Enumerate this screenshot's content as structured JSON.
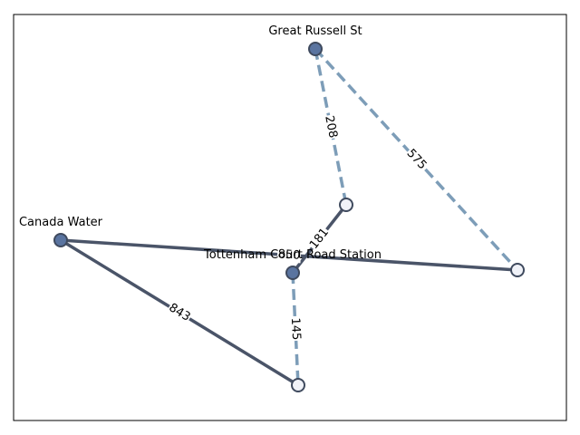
{
  "colors": {
    "solid_edge": "#4a5468",
    "dashed_edge": "#7d9db8",
    "filled_node": "#5a74a0",
    "open_node": "#f0f2f8",
    "node_stroke": "#3f4a5e",
    "frame": "#000000"
  },
  "nodes": [
    {
      "id": "great-russell-st",
      "label": "Great Russell St",
      "filled": true
    },
    {
      "id": "canada-water",
      "label": "Canada Water",
      "filled": true
    },
    {
      "id": "tottenham-court-road-station",
      "label": "Tottenham Court Road Station",
      "filled": true
    },
    {
      "id": "node-a",
      "label": "",
      "filled": false
    },
    {
      "id": "node-b",
      "label": "",
      "filled": false
    },
    {
      "id": "node-c",
      "label": "",
      "filled": false
    }
  ],
  "edges": [
    {
      "from": "great-russell-st",
      "to": "node-a",
      "label": "208",
      "style": "dashed"
    },
    {
      "from": "great-russell-st",
      "to": "node-b",
      "label": "575",
      "style": "dashed"
    },
    {
      "from": "node-a",
      "to": "tottenham-court-road-station",
      "label": "181",
      "style": "solid"
    },
    {
      "from": "canada-water",
      "to": "node-b",
      "label": "850",
      "style": "solid"
    },
    {
      "from": "canada-water",
      "to": "node-c",
      "label": "843",
      "style": "solid"
    },
    {
      "from": "tottenham-court-road-station",
      "to": "node-c",
      "label": "145",
      "style": "dashed"
    }
  ]
}
